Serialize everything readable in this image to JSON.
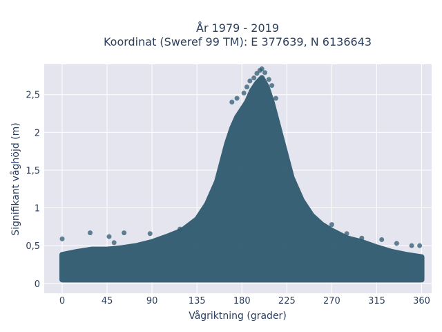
{
  "chart_data": {
    "type": "scatter",
    "title_line1": "År 1979 - 2019",
    "title_line2": "Koordinat (Sweref 99 TM): E 377639, N 6136643",
    "xlabel": "Vågriktning (grader)",
    "ylabel": "Signifikant våghöjd (m)",
    "xlim": [
      -18,
      370
    ],
    "ylim": [
      -0.13,
      2.9
    ],
    "xticks": [
      0,
      45,
      90,
      135,
      180,
      225,
      270,
      315,
      360
    ],
    "xtick_labels": [
      "0",
      "45",
      "90",
      "135",
      "180",
      "225",
      "270",
      "315",
      "360"
    ],
    "yticks": [
      0,
      0.5,
      1,
      1.5,
      2,
      2.5
    ],
    "ytick_labels": [
      "0",
      "0,5",
      "1",
      "1,5",
      "2",
      "2,5"
    ],
    "marker_color": "#2f5a70",
    "background_color": "#e5e5ef",
    "grid": true,
    "envelope": {
      "x": [
        0,
        15,
        30,
        45,
        60,
        75,
        90,
        105,
        120,
        135,
        145,
        155,
        160,
        165,
        170,
        175,
        180,
        185,
        190,
        195,
        200,
        205,
        210,
        215,
        220,
        225,
        230,
        240,
        250,
        260,
        270,
        285,
        300,
        315,
        330,
        345,
        360
      ],
      "y": [
        0.38,
        0.42,
        0.45,
        0.45,
        0.47,
        0.5,
        0.55,
        0.62,
        0.7,
        0.85,
        1.05,
        1.35,
        1.6,
        1.85,
        2.05,
        2.2,
        2.3,
        2.4,
        2.55,
        2.65,
        2.72,
        2.6,
        2.4,
        2.15,
        1.9,
        1.65,
        1.4,
        1.1,
        0.9,
        0.78,
        0.7,
        0.6,
        0.55,
        0.48,
        0.42,
        0.38,
        0.35
      ]
    },
    "points": [
      [
        0,
        0.59
      ],
      [
        28,
        0.67
      ],
      [
        47,
        0.62
      ],
      [
        52,
        0.54
      ],
      [
        62,
        0.67
      ],
      [
        88,
        0.66
      ],
      [
        118,
        0.72
      ],
      [
        170,
        2.4
      ],
      [
        175,
        2.45
      ],
      [
        182,
        2.52
      ],
      [
        185,
        2.6
      ],
      [
        188,
        2.68
      ],
      [
        192,
        2.72
      ],
      [
        195,
        2.78
      ],
      [
        198,
        2.82
      ],
      [
        200,
        2.84
      ],
      [
        203,
        2.79
      ],
      [
        207,
        2.7
      ],
      [
        210,
        2.62
      ],
      [
        214,
        2.45
      ],
      [
        270,
        0.78
      ],
      [
        285,
        0.66
      ],
      [
        300,
        0.6
      ],
      [
        320,
        0.58
      ],
      [
        335,
        0.53
      ],
      [
        350,
        0.5
      ],
      [
        358,
        0.5
      ]
    ]
  }
}
